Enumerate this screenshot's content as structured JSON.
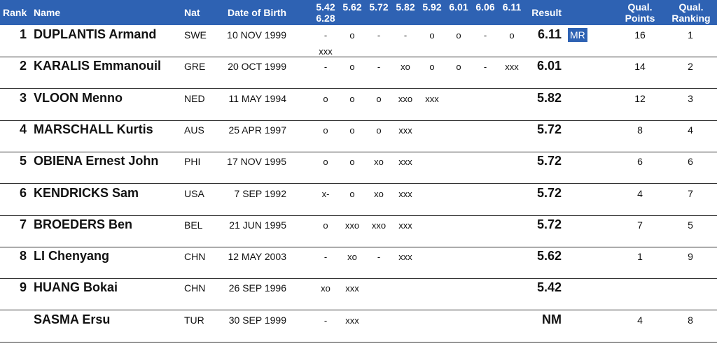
{
  "header": {
    "rank": "Rank",
    "name": "Name",
    "nat": "Nat",
    "dob": "Date of Birth",
    "heights": [
      "5.42",
      "5.62",
      "5.72",
      "5.82",
      "5.92",
      "6.01",
      "6.06",
      "6.11"
    ],
    "heights_wrap": "6.28",
    "result": "Result",
    "qual_points_line1": "Qual.",
    "qual_points_line2": "Points",
    "qual_ranking_line1": "Qual.",
    "qual_ranking_line2": "Ranking"
  },
  "rows": [
    {
      "rank": "1",
      "name": "DUPLANTIS Armand",
      "nat": "SWE",
      "dob": "10 NOV 1999",
      "attempts": [
        "-",
        "o",
        "-",
        "-",
        "o",
        "o",
        "-",
        "o"
      ],
      "attempts_wrap": "xxx",
      "result": "6.11",
      "badge": "MR",
      "points": "16",
      "qual_rank": "1"
    },
    {
      "rank": "2",
      "name": "KARALIS Emmanouil",
      "nat": "GRE",
      "dob": "20 OCT 1999",
      "attempts": [
        "-",
        "o",
        "-",
        "xo",
        "o",
        "o",
        "-",
        "xxx"
      ],
      "result": "6.01",
      "points": "14",
      "qual_rank": "2"
    },
    {
      "rank": "3",
      "name": "VLOON Menno",
      "nat": "NED",
      "dob": "11 MAY 1994",
      "attempts": [
        "o",
        "o",
        "o",
        "xxo",
        "xxx"
      ],
      "result": "5.82",
      "points": "12",
      "qual_rank": "3"
    },
    {
      "rank": "4",
      "name": "MARSCHALL Kurtis",
      "nat": "AUS",
      "dob": "25 APR 1997",
      "attempts": [
        "o",
        "o",
        "o",
        "xxx"
      ],
      "result": "5.72",
      "points": "8",
      "qual_rank": "4"
    },
    {
      "rank": "5",
      "name": "OBIENA Ernest John",
      "nat": "PHI",
      "dob": "17 NOV 1995",
      "attempts": [
        "o",
        "o",
        "xo",
        "xxx"
      ],
      "result": "5.72",
      "points": "6",
      "qual_rank": "6"
    },
    {
      "rank": "6",
      "name": "KENDRICKS Sam",
      "nat": "USA",
      "dob": "7 SEP 1992",
      "attempts": [
        "x-",
        "o",
        "xo",
        "xxx"
      ],
      "result": "5.72",
      "points": "4",
      "qual_rank": "7"
    },
    {
      "rank": "7",
      "name": "BROEDERS Ben",
      "nat": "BEL",
      "dob": "21 JUN 1995",
      "attempts": [
        "o",
        "xxo",
        "xxo",
        "xxx"
      ],
      "result": "5.72",
      "points": "7",
      "qual_rank": "5"
    },
    {
      "rank": "8",
      "name": "LI Chenyang",
      "nat": "CHN",
      "dob": "12 MAY 2003",
      "attempts": [
        "-",
        "xo",
        "-",
        "xxx"
      ],
      "result": "5.62",
      "points": "1",
      "qual_rank": "9"
    },
    {
      "rank": "9",
      "name": "HUANG Bokai",
      "nat": "CHN",
      "dob": "26 SEP 1996",
      "attempts": [
        "xo",
        "xxx"
      ],
      "result": "5.42",
      "points": "",
      "qual_rank": ""
    },
    {
      "rank": "",
      "name": "SASMA Ersu",
      "nat": "TUR",
      "dob": "30 SEP 1999",
      "attempts": [
        "-",
        "xxx"
      ],
      "result": "NM",
      "points": "4",
      "qual_rank": "8"
    }
  ],
  "colors": {
    "header_bg": "#2e62b3",
    "header_text": "#ffffff",
    "badge_bg": "#2e62b3"
  }
}
